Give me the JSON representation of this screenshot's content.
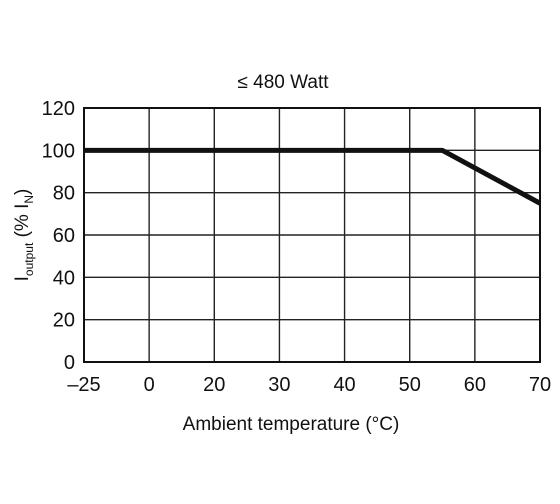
{
  "chart_data": {
    "type": "line",
    "title": "≤ 480 Watt",
    "xlabel": "Ambient temperature (°C)",
    "ylabel": {
      "main": "I",
      "sub1": "output",
      "mid": " (% I",
      "sub2": "N",
      "end": ")"
    },
    "x_ticks": [
      -25,
      0,
      20,
      30,
      40,
      50,
      60,
      70
    ],
    "x_tick_labels": [
      "–25",
      "0",
      "20",
      "30",
      "40",
      "50",
      "60",
      "70"
    ],
    "y_ticks": [
      0,
      20,
      40,
      60,
      80,
      100,
      120
    ],
    "ylim": [
      0,
      120
    ],
    "grid": true,
    "series": [
      {
        "points": [
          {
            "x": -25,
            "y": 100
          },
          {
            "x": 55,
            "y": 100
          },
          {
            "x": 70,
            "y": 75
          }
        ],
        "color": "#111111"
      }
    ]
  }
}
